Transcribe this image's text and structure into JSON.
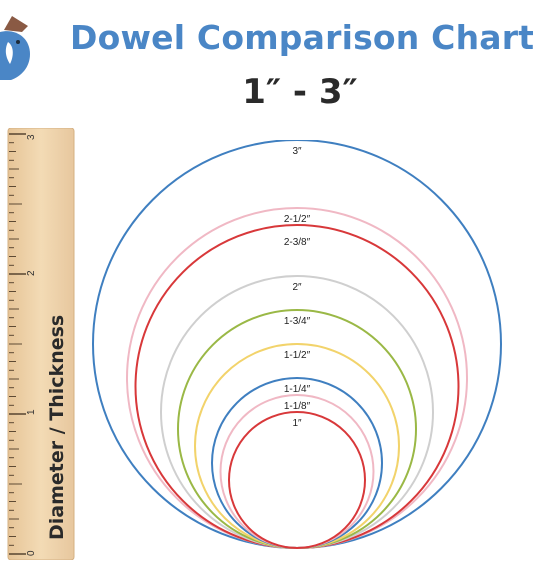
{
  "header": {
    "title": "Dowel Comparison Chart",
    "subtitle": "1″ - 3″"
  },
  "brand": {
    "logo_icon": "bird-logo-icon",
    "colors": {
      "title_blue": "#4a86c6",
      "logo_brown": "#8a5a44"
    }
  },
  "ruler": {
    "label": "Diameter / Thickness",
    "numbers": [
      "0",
      "1",
      "2",
      "3"
    ]
  },
  "circles": [
    {
      "label": "1″",
      "diameter_in": 1.0,
      "color": "#d8383a"
    },
    {
      "label": "1-1/8″",
      "diameter_in": 1.125,
      "color": "#f0b8c4"
    },
    {
      "label": "1-1/4″",
      "diameter_in": 1.25,
      "color": "#3f7fc0"
    },
    {
      "label": "1-1/2″",
      "diameter_in": 1.5,
      "color": "#f2d36b"
    },
    {
      "label": "1-3/4″",
      "diameter_in": 1.75,
      "color": "#9ab846"
    },
    {
      "label": "2″",
      "diameter_in": 2.0,
      "color": "#cfcfcf"
    },
    {
      "label": "2-3/8″",
      "diameter_in": 2.375,
      "color": "#d8383a"
    },
    {
      "label": "2-1/2″",
      "diameter_in": 2.5,
      "color": "#f0b8c4"
    },
    {
      "label": "3″",
      "diameter_in": 3.0,
      "color": "#3f7fc0"
    }
  ]
}
